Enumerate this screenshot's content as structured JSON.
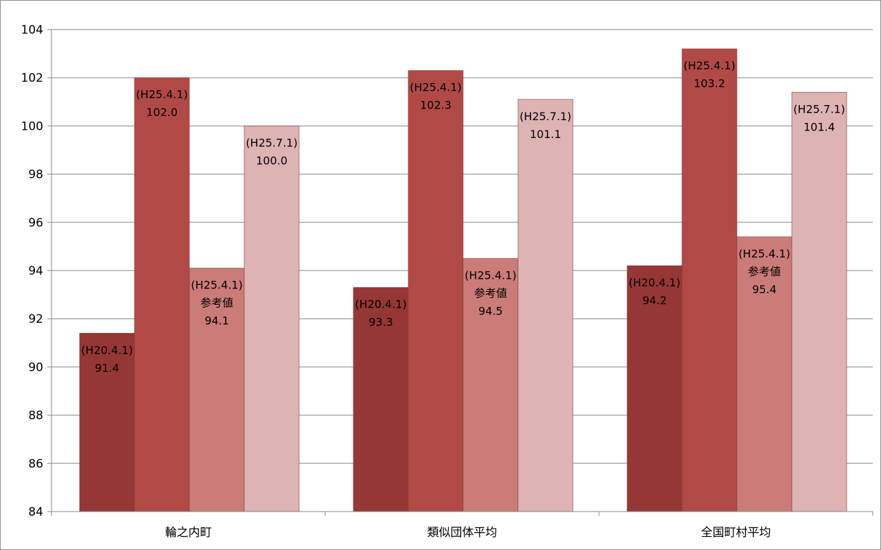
{
  "chart_data": {
    "type": "bar",
    "title": "",
    "xlabel": "",
    "ylabel": "",
    "ylim": [
      84,
      104
    ],
    "yticks": [
      84,
      86,
      88,
      90,
      92,
      94,
      96,
      98,
      100,
      102,
      104
    ],
    "grid": true,
    "legend": "none",
    "categories": [
      "輪之内町",
      "類似団体平均",
      "全国町村平均"
    ],
    "series": [
      {
        "color": "#953735",
        "values": [
          91.4,
          93.3,
          94.2
        ],
        "labels": [
          [
            "(H20.4.1)",
            "91.4"
          ],
          [
            "(H20.4.1)",
            "93.3"
          ],
          [
            "(H20.4.1)",
            "94.2"
          ]
        ]
      },
      {
        "color": "#B14A47",
        "values": [
          102.0,
          102.3,
          103.2
        ],
        "labels": [
          [
            "(H25.4.1)",
            "102.0"
          ],
          [
            "(H25.4.1)",
            "102.3"
          ],
          [
            "(H25.4.1)",
            "103.2"
          ]
        ]
      },
      {
        "color": "#CB7C79",
        "values": [
          94.1,
          94.5,
          95.4
        ],
        "labels": [
          [
            "(H25.4.1)",
            "参考値",
            "94.1"
          ],
          [
            "(H25.4.1)",
            "参考値",
            "94.5"
          ],
          [
            "(H25.4.1)",
            "参考値",
            "95.4"
          ]
        ]
      },
      {
        "color": "#DEB3B3",
        "values": [
          100.0,
          101.1,
          101.4
        ],
        "labels": [
          [
            "(H25.7.1)",
            "100.0"
          ],
          [
            "(H25.7.1)",
            "101.1"
          ],
          [
            "(H25.7.1)",
            "101.4"
          ]
        ]
      }
    ]
  }
}
